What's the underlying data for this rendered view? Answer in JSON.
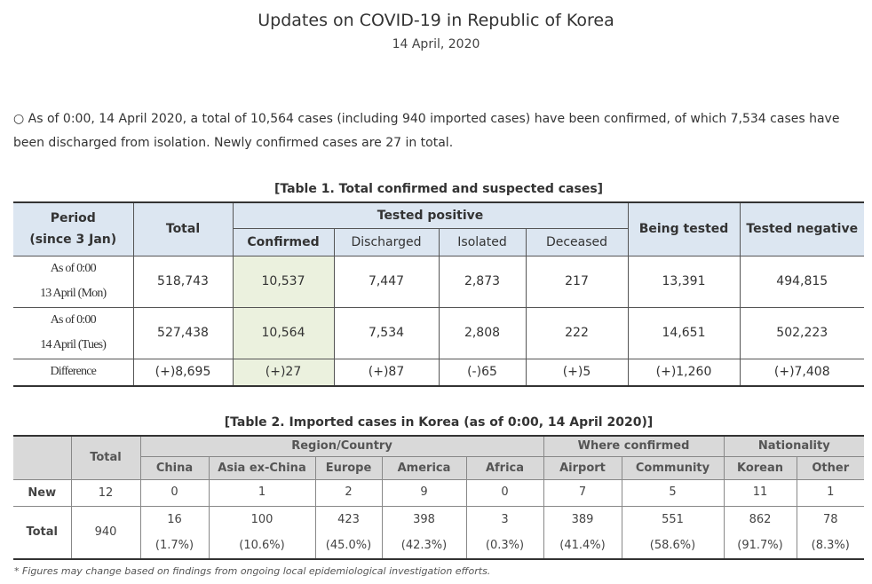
{
  "header": {
    "title": "Updates on COVID-19 in Republic of Korea",
    "date": "14 April, 2020"
  },
  "summary": "○ As of 0:00, 14 April 2020, a total of 10,564 cases (including 940 imported cases) have been confirmed, of which 7,534 cases have been discharged from isolation. Newly confirmed cases are 27 in total.",
  "table1": {
    "title": "[Table 1. Total confirmed and suspected cases]",
    "headers": {
      "period": "Period",
      "period_note": "(since 3 Jan)",
      "total": "Total",
      "tested_positive": "Tested positive",
      "confirmed": "Confirmed",
      "discharged": "Discharged",
      "isolated": "Isolated",
      "deceased": "Deceased",
      "being_tested": "Being tested",
      "tested_negative": "Tested negative"
    },
    "rows": [
      {
        "label": [
          "As of 0:00",
          "13 April (Mon)"
        ],
        "cells": [
          "518,743",
          "10,537",
          "7,447",
          "2,873",
          "217",
          "13,391",
          "494,815"
        ]
      },
      {
        "label": [
          "As of 0:00",
          "14 April (Tues)"
        ],
        "cells": [
          "527,438",
          "10,564",
          "7,534",
          "2,808",
          "222",
          "14,651",
          "502,223"
        ]
      },
      {
        "label": [
          "Difference"
        ],
        "cells": [
          "(+)8,695",
          "(+)27",
          "(+)87",
          "(-)65",
          "(+)5",
          "(+)1,260",
          "(+)7,408"
        ]
      }
    ]
  },
  "table2": {
    "title": "[Table 2. Imported cases in Korea (as of 0:00, 14 April 2020)]",
    "headers": {
      "total": "Total",
      "region": "Region/Country",
      "where": "Where confirmed",
      "nationality": "Nationality",
      "columns": [
        "China",
        "Asia ex-China",
        "Europe",
        "America",
        "Africa",
        "Airport",
        "Community",
        "Korean",
        "Other"
      ]
    },
    "rows": [
      {
        "label": "New",
        "total": "12",
        "cells": [
          [
            "0"
          ],
          [
            "1"
          ],
          [
            "2"
          ],
          [
            "9"
          ],
          [
            "0"
          ],
          [
            "7"
          ],
          [
            "5"
          ],
          [
            "11"
          ],
          [
            "1"
          ]
        ]
      },
      {
        "label": "Total",
        "total": "940",
        "cells": [
          [
            "16",
            "(1.7%)"
          ],
          [
            "100",
            "(10.6%)"
          ],
          [
            "423",
            "(45.0%)"
          ],
          [
            "398",
            "(42.3%)"
          ],
          [
            "3",
            "(0.3%)"
          ],
          [
            "389",
            "(41.4%)"
          ],
          [
            "551",
            "(58.6%)"
          ],
          [
            "862",
            "(91.7%)"
          ],
          [
            "78",
            "(8.3%)"
          ]
        ]
      }
    ]
  },
  "footnote": "* Figures may change based on findings from ongoing local epidemiological investigation efforts."
}
